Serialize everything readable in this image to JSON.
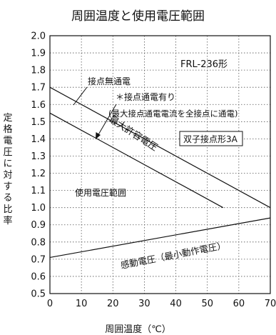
{
  "chart_data": {
    "type": "line",
    "title": "周囲温度と使用電圧範囲",
    "xlabel": "周囲温度（℃）",
    "ylabel": "定格電圧に対する比率",
    "xlim": [
      0,
      70
    ],
    "ylim": [
      0.5,
      2.0
    ],
    "x_ticks": [
      "0",
      "10",
      "20",
      "30",
      "40",
      "50",
      "60",
      "70"
    ],
    "y_ticks": [
      "0.5",
      "0.6",
      "0.7",
      "0.8",
      "0.9",
      "1.0",
      "1.1",
      "1.2",
      "1.3",
      "1.4",
      "1.5",
      "1.6",
      "1.7",
      "1.8",
      "1.9",
      "2.0"
    ],
    "grid": true,
    "series": [
      {
        "name": "接点無通電",
        "x": [
          0,
          70
        ],
        "y": [
          1.7,
          1.0
        ]
      },
      {
        "name": "最大許容電圧",
        "x": [
          0,
          55
        ],
        "y": [
          1.55,
          1.0
        ]
      },
      {
        "name": "感動電圧（最小動作電圧）",
        "x": [
          0,
          70
        ],
        "y": [
          0.71,
          0.94
        ]
      }
    ],
    "annotations": {
      "model": "FRL-236形",
      "no_current": "接点無通電",
      "current_note_1": "＊接点通電有り",
      "current_note_2": "(最大接点通電電流を全接点に通電)",
      "max_voltage": "最大許容電圧",
      "contact_box": "双子接点形3A",
      "range": "使用電圧範囲",
      "min_voltage": "感動電圧（最小動作電圧）"
    }
  }
}
